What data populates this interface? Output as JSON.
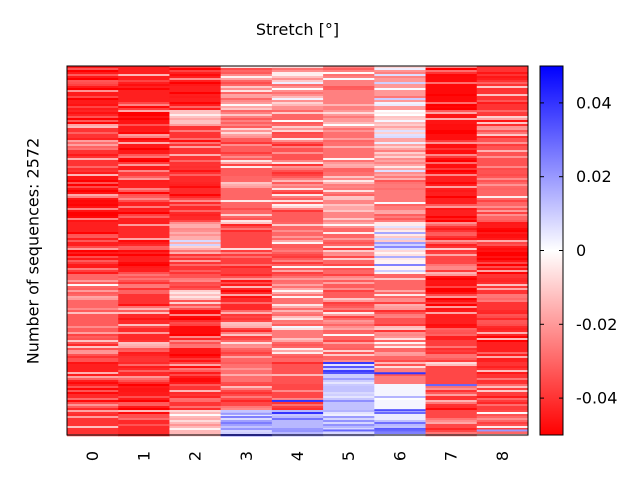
{
  "chart_data": {
    "type": "heatmap",
    "title": "Stretch [°]",
    "xlabel": "",
    "ylabel": "Number of sequences: 2572",
    "columns": [
      "0",
      "1",
      "2",
      "3",
      "4",
      "5",
      "6",
      "7",
      "8"
    ],
    "n_sequences": 2572,
    "colorbar": {
      "min": -0.05,
      "max": 0.05,
      "ticks": [
        -0.04,
        -0.02,
        0,
        0.02,
        0.04
      ],
      "tick_labels": [
        "-0.04",
        "-0.02",
        "0",
        "0.02",
        "0.04"
      ],
      "colors": {
        "low": "#ff0000",
        "mid": "#ffffff",
        "high": "#0000ff"
      }
    },
    "column_typical_value": [
      -0.043,
      -0.044,
      -0.04,
      -0.034,
      -0.032,
      -0.03,
      -0.028,
      -0.045,
      -0.038
    ],
    "bands": [
      {
        "from": 0.0,
        "to": 0.12,
        "values": [
          -0.045,
          -0.044,
          -0.044,
          -0.03,
          -0.022,
          -0.025,
          -0.02,
          -0.048,
          -0.04
        ]
      },
      {
        "from": 0.12,
        "to": 0.16,
        "values": [
          -0.043,
          -0.046,
          -0.012,
          -0.025,
          -0.03,
          -0.02,
          -0.01,
          -0.046,
          -0.038
        ]
      },
      {
        "from": 0.16,
        "to": 0.3,
        "values": [
          -0.04,
          -0.045,
          -0.04,
          -0.032,
          -0.034,
          -0.028,
          -0.018,
          -0.047,
          -0.034
        ]
      },
      {
        "from": 0.3,
        "to": 0.42,
        "values": [
          -0.046,
          -0.044,
          -0.042,
          -0.03,
          -0.032,
          -0.024,
          -0.026,
          -0.044,
          -0.03
        ]
      },
      {
        "from": 0.42,
        "to": 0.5,
        "values": [
          -0.044,
          -0.042,
          -0.016,
          -0.036,
          -0.03,
          -0.03,
          -0.004,
          -0.04,
          -0.045
        ]
      },
      {
        "from": 0.5,
        "to": 0.56,
        "values": [
          -0.045,
          -0.044,
          -0.04,
          -0.038,
          -0.032,
          -0.03,
          -0.002,
          -0.036,
          -0.046
        ]
      },
      {
        "from": 0.56,
        "to": 0.66,
        "values": [
          -0.03,
          -0.04,
          -0.034,
          -0.042,
          -0.028,
          -0.032,
          -0.03,
          -0.046,
          -0.04
        ]
      },
      {
        "from": 0.66,
        "to": 0.74,
        "values": [
          -0.032,
          -0.042,
          -0.048,
          -0.036,
          -0.026,
          -0.03,
          -0.034,
          -0.044,
          -0.042
        ]
      },
      {
        "from": 0.74,
        "to": 0.8,
        "values": [
          -0.034,
          -0.04,
          -0.046,
          -0.03,
          -0.03,
          -0.03,
          -0.03,
          -0.038,
          -0.044
        ]
      },
      {
        "from": 0.8,
        "to": 0.86,
        "values": [
          -0.044,
          -0.042,
          -0.045,
          -0.028,
          -0.034,
          0.01,
          -0.026,
          -0.036,
          -0.04
        ]
      },
      {
        "from": 0.86,
        "to": 0.93,
        "values": [
          -0.042,
          -0.045,
          -0.04,
          -0.036,
          -0.036,
          0.012,
          0.002,
          -0.04,
          -0.038
        ]
      },
      {
        "from": 0.93,
        "to": 1.0,
        "values": [
          -0.04,
          -0.042,
          -0.014,
          0.012,
          0.014,
          0.008,
          0.004,
          -0.036,
          -0.03
        ]
      }
    ],
    "blue_streaks": [
      {
        "column": 4,
        "at": 0.905,
        "value": 0.04
      },
      {
        "column": 6,
        "at": 0.83,
        "value": 0.04
      },
      {
        "column": 6,
        "at": 0.93,
        "value": 0.035
      },
      {
        "column": 7,
        "at": 0.862,
        "value": 0.03
      },
      {
        "column": 3,
        "at": 0.94,
        "value": 0.02
      },
      {
        "column": 5,
        "at": 0.985,
        "value": 0.03
      },
      {
        "column": 6,
        "at": 0.985,
        "value": 0.03
      },
      {
        "column": 8,
        "at": 0.985,
        "value": 0.02
      }
    ]
  }
}
